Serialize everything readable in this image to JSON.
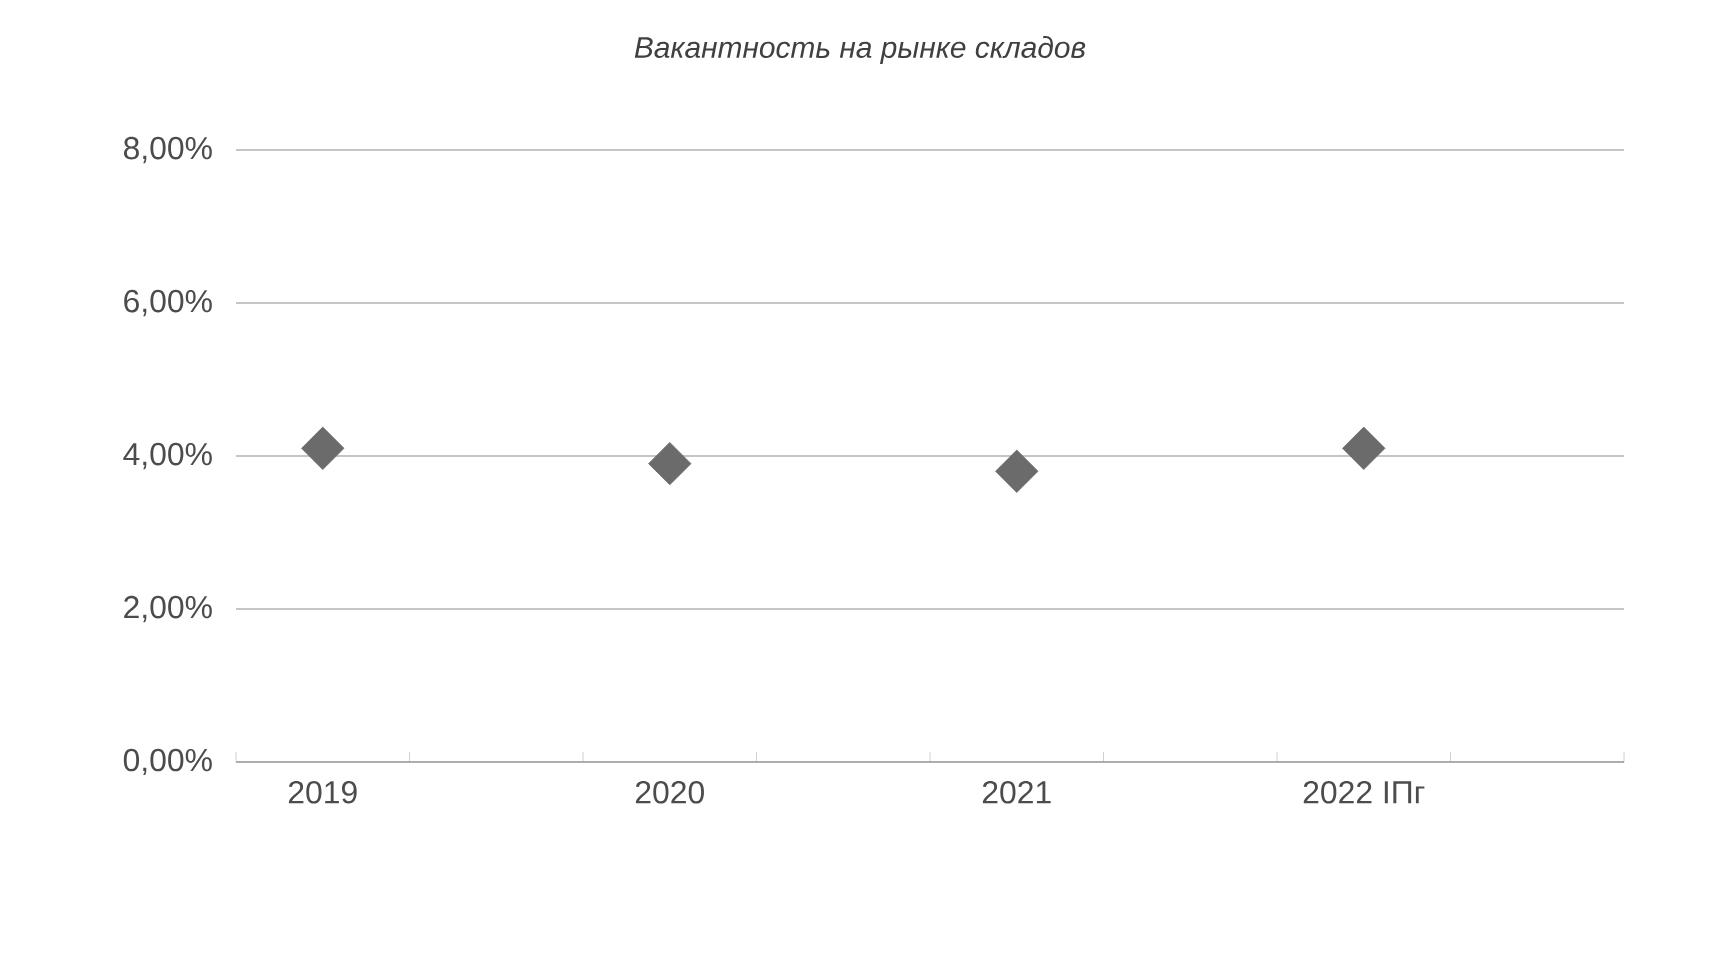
{
  "chart_data": {
    "type": "scatter",
    "title": "*Вакантность на рынке складов*",
    "categories": [
      "2019",
      "2020",
      "2021",
      "2022 IПг"
    ],
    "values": [
      4.1,
      3.9,
      3.8,
      4.1
    ],
    "color": "#6b6b6b",
    "marker": "diamond",
    "ylim": [
      0,
      8
    ],
    "yticks": [
      {
        "value": 0,
        "label": "0,00%"
      },
      {
        "value": 2,
        "label": "2,00%"
      },
      {
        "value": 4,
        "label": "4,00%"
      },
      {
        "value": 6,
        "label": "6,00%"
      },
      {
        "value": 8,
        "label": "8,00%"
      }
    ],
    "grid": "y"
  }
}
